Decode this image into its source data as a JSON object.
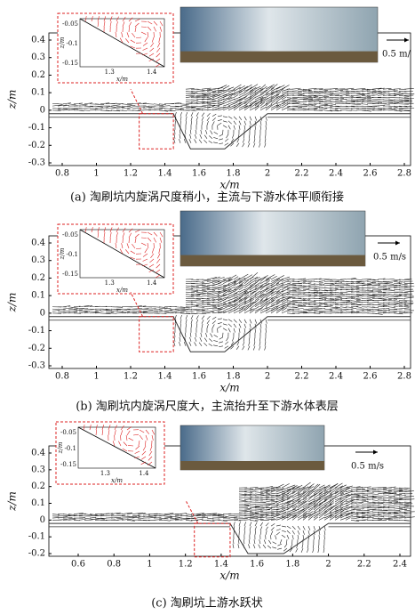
{
  "panels": [
    {
      "caption": "(a) 淘刷坑内旋涡尺度稍小，主流与下游水体平顺衔接",
      "x_label": "x/m",
      "y_label": "z/m",
      "xticks": [
        0.8,
        1,
        1.2,
        1.4,
        1.6,
        1.8,
        2,
        2.2,
        2.4,
        2.6,
        2.8
      ],
      "yticks": [
        0.4,
        0.3,
        0.2,
        0.1,
        0,
        -0.1,
        -0.2,
        -0.3
      ],
      "scale_label": "0.5 m/",
      "inset": {
        "x_label": "x/m",
        "y_label": "z/m",
        "xticks": [
          1.3,
          1.4
        ],
        "yticks": [
          -0.05,
          -0.1,
          -0.15
        ]
      }
    },
    {
      "caption": "(b) 淘刷坑内旋涡尺度大，主流抬升至下游水体表层",
      "x_label": "x/m",
      "y_label": "z/m",
      "xticks": [
        0.8,
        1,
        1.2,
        1.4,
        1.6,
        1.8,
        2,
        2.2,
        2.4,
        2.6,
        2.8
      ],
      "yticks": [
        0.4,
        0.3,
        0.2,
        0.1,
        0,
        -0.1,
        -0.2,
        -0.3
      ],
      "scale_label": "0.5 m/s",
      "inset": {
        "x_label": "x/m",
        "y_label": "z/m",
        "xticks": [
          1.3,
          1.4
        ],
        "yticks": [
          -0.05,
          -0.1,
          -0.15
        ]
      }
    },
    {
      "caption": "(c) 淘刷坑上游水跃状",
      "x_label": "x/m",
      "y_label": "z/m",
      "xticks": [
        0.6,
        0.8,
        1,
        1.2,
        1.4,
        1.6,
        1.8,
        2,
        2.2,
        2.4
      ],
      "yticks": [
        0.4,
        0.3,
        0.2,
        0.1,
        0,
        -0.1,
        -0.2
      ],
      "scale_label": "0.5 m/s",
      "inset": {
        "x_label": "x/m",
        "y_label": "z/m",
        "xticks": [
          1.3,
          1.4
        ],
        "yticks": [
          -0.05,
          -0.1,
          -0.15
        ]
      }
    }
  ]
}
